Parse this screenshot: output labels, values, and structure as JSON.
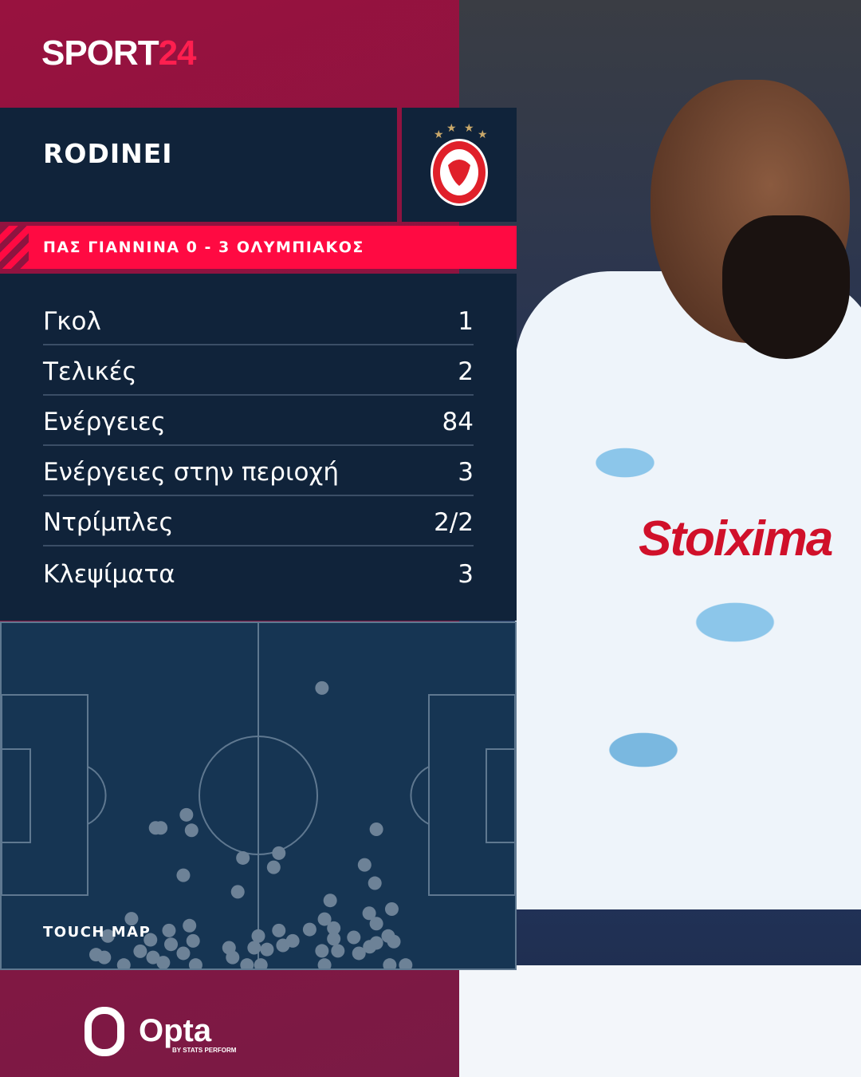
{
  "brand": {
    "logo_white": "SPORT",
    "logo_red": "24",
    "accent": "#ff0a42"
  },
  "player": {
    "name": "RODINEI",
    "club_crest": "olympiacos-crest"
  },
  "match": {
    "label": "ΠΑΣ ΓΙΑΝΝΙΝΑ 0 - 3 ΟΛΥΜΠΙΑΚΟΣ"
  },
  "stats": [
    {
      "label": "Γκολ",
      "value": "1"
    },
    {
      "label": "Τελικές",
      "value": "2"
    },
    {
      "label": "Ενέργειες",
      "value": "84"
    },
    {
      "label": "Ενέργειες στην περιοχή",
      "value": "3"
    },
    {
      "label": "Ντρίμπλες",
      "value": "2/2"
    },
    {
      "label": "Κλεψίματα",
      "value": "3"
    }
  ],
  "touch_map": {
    "title": "TOUCH MAP",
    "points": [
      [
        62.4,
        18.8
      ],
      [
        73,
        59.7
      ],
      [
        36,
        55.5
      ],
      [
        37,
        60
      ],
      [
        30,
        59.3
      ],
      [
        31,
        59.3
      ],
      [
        47,
        68
      ],
      [
        54,
        66.6
      ],
      [
        53,
        70.7
      ],
      [
        35.4,
        73
      ],
      [
        46,
        77.8
      ],
      [
        70.7,
        70
      ],
      [
        72.7,
        75.3
      ],
      [
        64,
        80.3
      ],
      [
        76,
        82.8
      ],
      [
        71.6,
        84
      ],
      [
        73,
        87
      ],
      [
        25.3,
        85.6
      ],
      [
        36.6,
        87.6
      ],
      [
        37.3,
        92
      ],
      [
        32.6,
        89
      ],
      [
        29,
        91.7
      ],
      [
        33,
        93
      ],
      [
        27,
        95
      ],
      [
        29.5,
        96.8
      ],
      [
        35.4,
        95.6
      ],
      [
        18.4,
        96
      ],
      [
        20,
        96.8
      ],
      [
        20.7,
        90.6
      ],
      [
        23.8,
        99
      ],
      [
        31.5,
        98.3
      ],
      [
        37.8,
        99
      ],
      [
        44.3,
        94
      ],
      [
        45,
        96.8
      ],
      [
        50,
        90.6
      ],
      [
        49.2,
        94
      ],
      [
        51.7,
        94.5
      ],
      [
        54,
        89
      ],
      [
        54.8,
        93.3
      ],
      [
        56.7,
        92
      ],
      [
        60,
        88.7
      ],
      [
        62.9,
        85.7
      ],
      [
        64.7,
        88.3
      ],
      [
        64.7,
        91.4
      ],
      [
        65.5,
        94.9
      ],
      [
        62.4,
        94.9
      ],
      [
        68.6,
        91
      ],
      [
        69.6,
        95.6
      ],
      [
        71.7,
        93.7
      ],
      [
        73,
        92.6
      ],
      [
        75.3,
        90.6
      ],
      [
        76.4,
        92.2
      ],
      [
        47.8,
        99
      ],
      [
        62.9,
        99
      ],
      [
        75.6,
        99
      ],
      [
        78.7,
        99
      ],
      [
        50.5,
        99
      ]
    ]
  },
  "footer": {
    "provider": "Opta",
    "provider_sub": "BY STATS PERFORM"
  },
  "photo": {
    "sponsor": "Stoixima"
  }
}
